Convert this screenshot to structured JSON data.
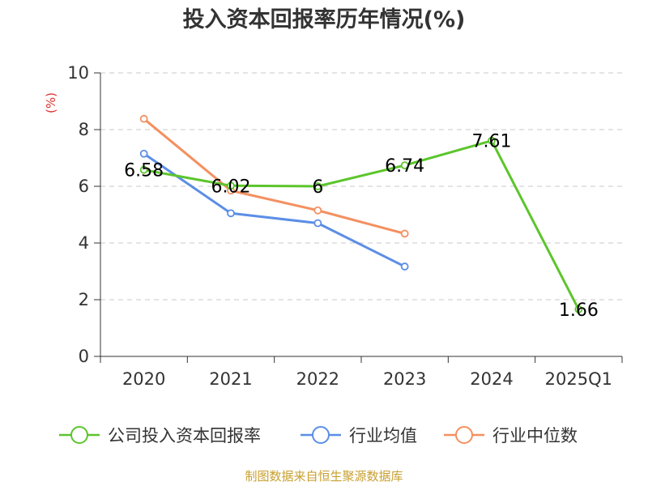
{
  "chart_data": {
    "type": "line",
    "title": "投入资本回报率历年情况(%)",
    "ylabel": "(%)",
    "xlabel": "",
    "ylim": [
      0,
      10
    ],
    "yticks": [
      0,
      2,
      4,
      6,
      8,
      10
    ],
    "grid": true,
    "legend_position": "bottom",
    "categories": [
      "2020",
      "2021",
      "2022",
      "2023",
      "2024",
      "2025Q1"
    ],
    "series": [
      {
        "name": "公司投入资本回报率",
        "color": "#5cc52c",
        "values": [
          6.58,
          6.02,
          6,
          6.74,
          7.61,
          1.66
        ],
        "labels": [
          "6.58",
          "6.02",
          "6",
          "6.74",
          "7.61",
          "1.66"
        ]
      },
      {
        "name": "行业均值",
        "color": "#5b8ee6",
        "values": [
          7.15,
          5.05,
          4.7,
          3.17,
          null,
          null
        ]
      },
      {
        "name": "行业中位数",
        "color": "#f49060",
        "values": [
          8.38,
          5.85,
          5.15,
          4.33,
          null,
          null
        ]
      }
    ]
  },
  "footer": {
    "source": "制图数据来自恒生聚源数据库"
  }
}
